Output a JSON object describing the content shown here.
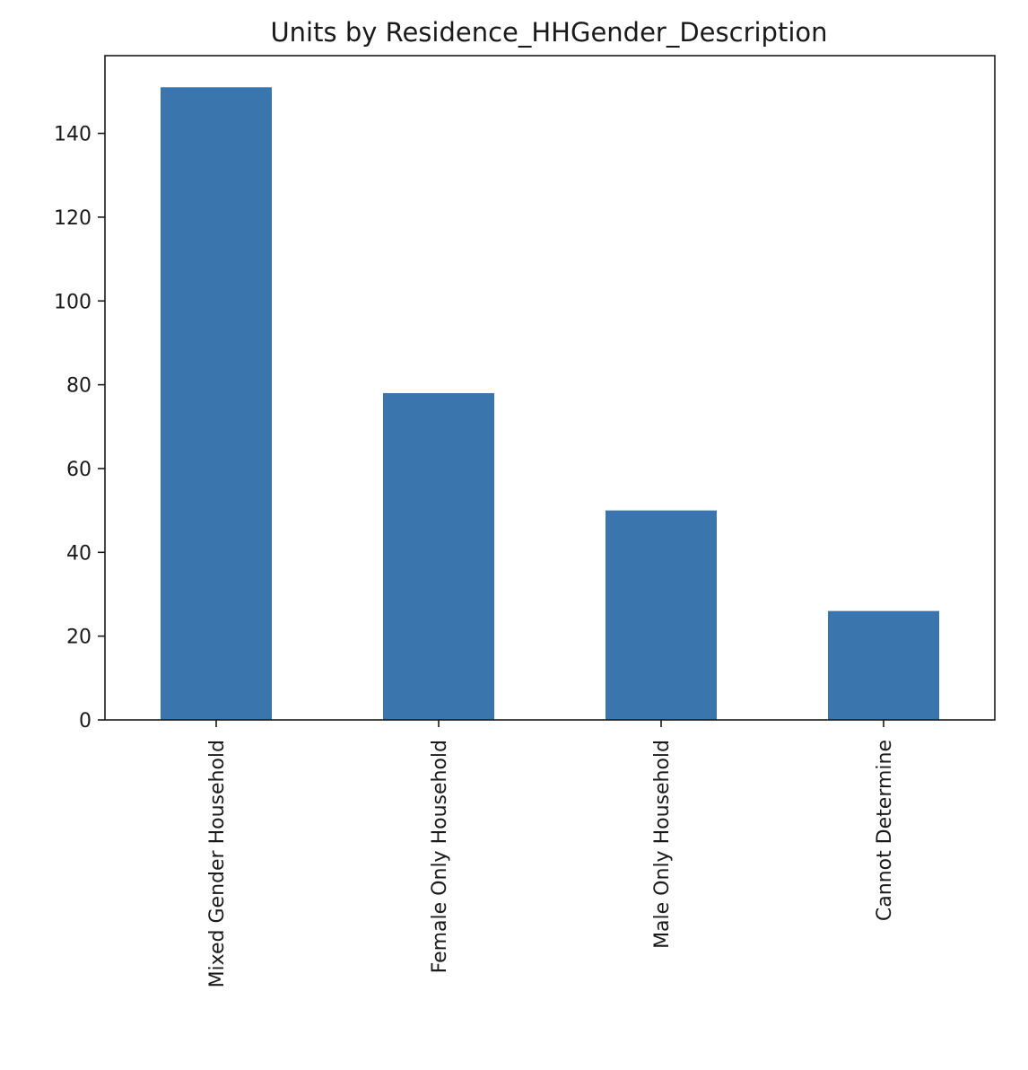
{
  "chart_data": {
    "type": "bar",
    "title": "Units by Residence_HHGender_Description",
    "xlabel": "",
    "ylabel": "",
    "categories": [
      "Mixed Gender Household",
      "Female Only Household",
      "Male Only Household",
      "Cannot Determine"
    ],
    "values": [
      151,
      78,
      50,
      26
    ],
    "ylim": [
      0,
      158.55
    ],
    "yticks": [
      0,
      20,
      40,
      60,
      80,
      100,
      120,
      140
    ],
    "bar_color": "#3a76ad",
    "grid": false,
    "legend": "none"
  }
}
